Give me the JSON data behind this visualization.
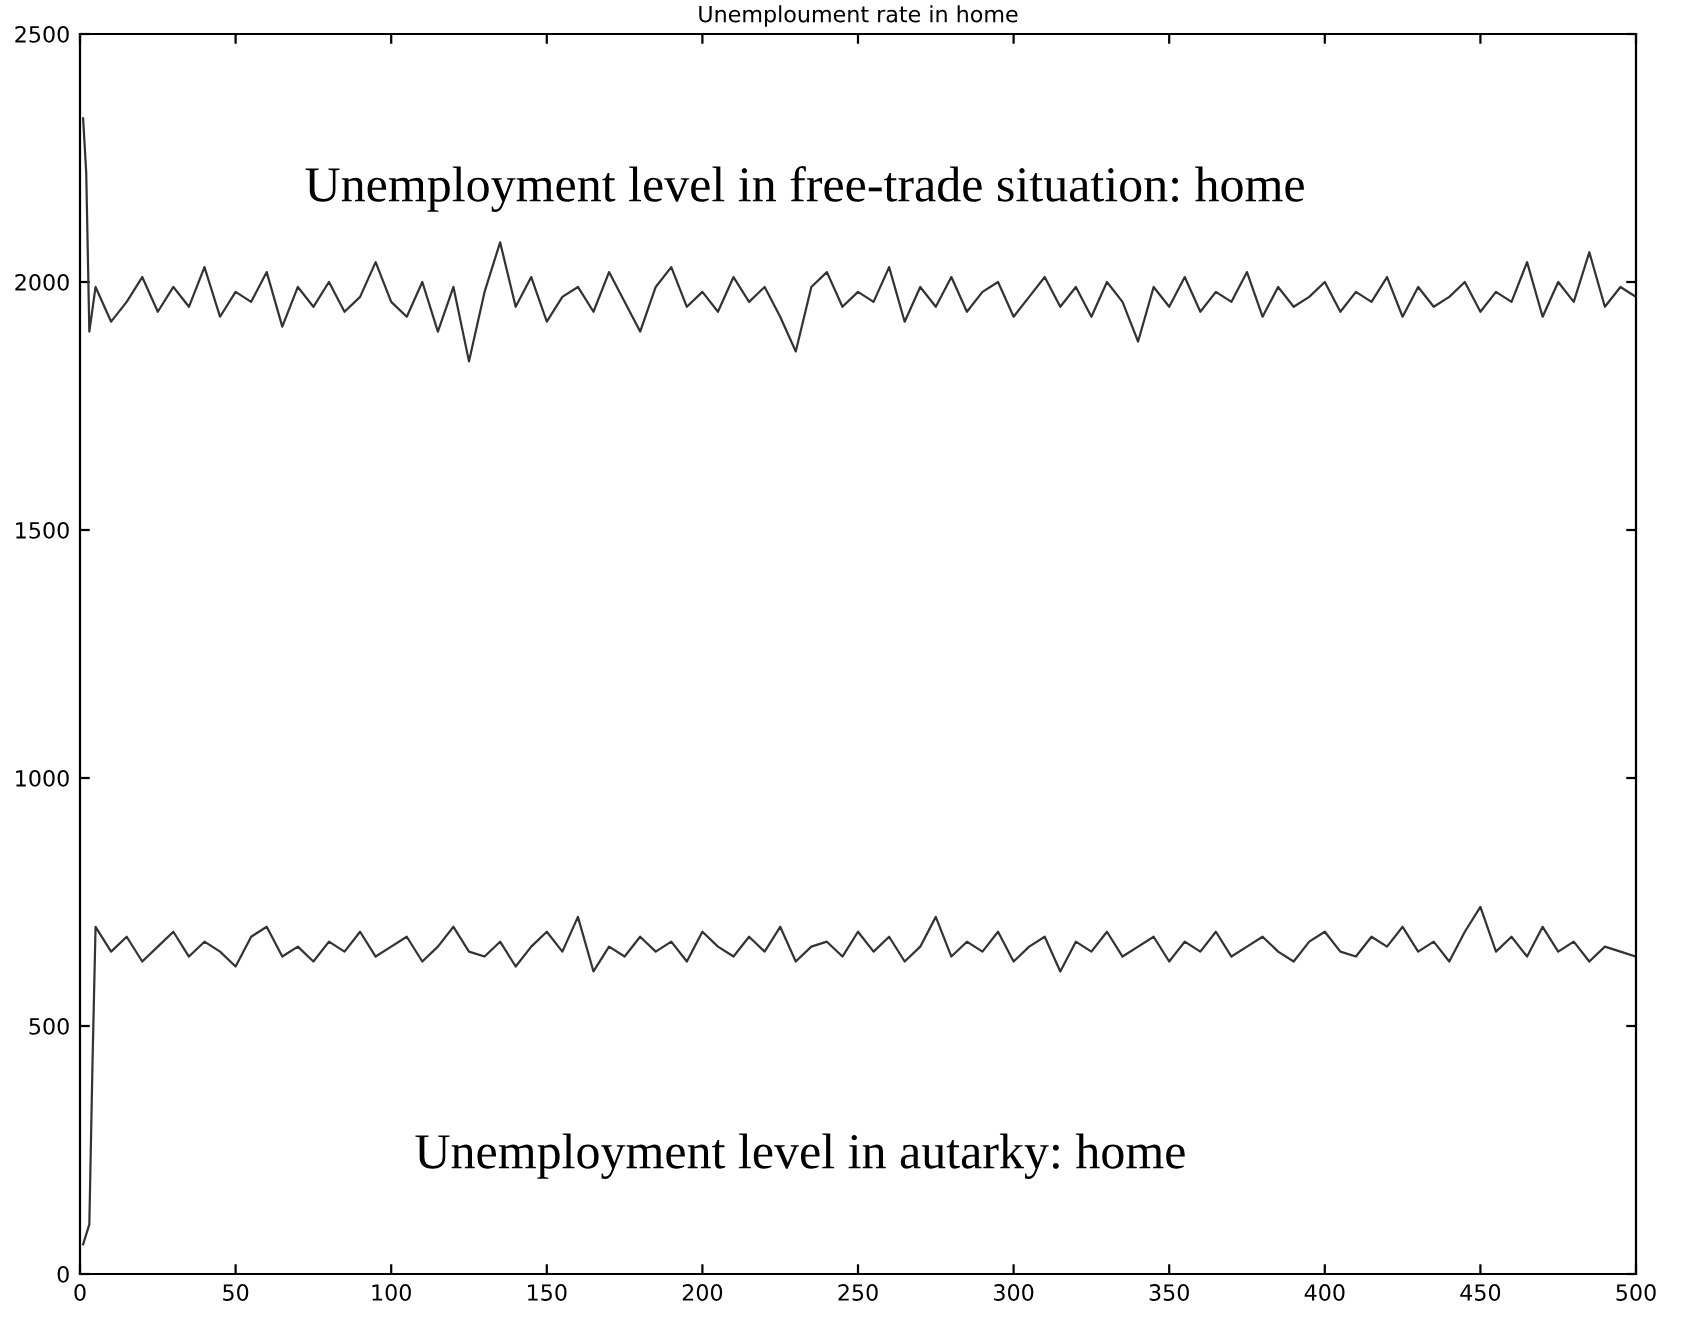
{
  "chart_data": {
    "type": "line",
    "title": "Unemploument rate in home",
    "series": [
      {
        "color": "#333333",
        "x": [
          1,
          2,
          3,
          5,
          10,
          15,
          20,
          25,
          30,
          35,
          40,
          45,
          50,
          55,
          60,
          65,
          70,
          75,
          80,
          85,
          90,
          95,
          100,
          105,
          110,
          115,
          120,
          125,
          130,
          135,
          140,
          145,
          150,
          155,
          160,
          165,
          170,
          175,
          180,
          185,
          190,
          195,
          200,
          205,
          210,
          215,
          220,
          225,
          230,
          235,
          240,
          245,
          250,
          255,
          260,
          265,
          270,
          275,
          280,
          285,
          290,
          295,
          300,
          305,
          310,
          315,
          320,
          325,
          330,
          335,
          340,
          345,
          350,
          355,
          360,
          365,
          370,
          375,
          380,
          385,
          390,
          395,
          400,
          405,
          410,
          415,
          420,
          425,
          430,
          435,
          440,
          445,
          450,
          455,
          460,
          465,
          470,
          475,
          480,
          485,
          490,
          495,
          500
        ],
        "values": [
          2330,
          2220,
          1900,
          1990,
          1920,
          1960,
          2010,
          1940,
          1990,
          1950,
          2030,
          1930,
          1980,
          1960,
          2020,
          1910,
          1990,
          1950,
          2000,
          1940,
          1970,
          2040,
          1960,
          1930,
          2000,
          1900,
          1990,
          1840,
          1980,
          2080,
          1950,
          2010,
          1920,
          1970,
          1990,
          1940,
          2020,
          1960,
          1900,
          1990,
          2030,
          1950,
          1980,
          1940,
          2010,
          1960,
          1990,
          1930,
          1860,
          1990,
          2020,
          1950,
          1980,
          1960,
          2030,
          1920,
          1990,
          1950,
          2010,
          1940,
          1980,
          2000,
          1930,
          1970,
          2010,
          1950,
          1990,
          1930,
          2000,
          1960,
          1880,
          1990,
          1950,
          2010,
          1940,
          1980,
          1960,
          2020,
          1930,
          1990,
          1950,
          1970,
          2000,
          1940,
          1980,
          1960,
          2010,
          1930,
          1990,
          1950,
          1970,
          2000,
          1940,
          1980,
          1960,
          2040,
          1930,
          2000,
          1960,
          2060,
          1950,
          1990,
          1970
        ]
      },
      {
        "color": "#333333",
        "x": [
          1,
          2,
          3,
          4,
          5,
          10,
          15,
          20,
          25,
          30,
          35,
          40,
          45,
          50,
          55,
          60,
          65,
          70,
          75,
          80,
          85,
          90,
          95,
          100,
          105,
          110,
          115,
          120,
          125,
          130,
          135,
          140,
          145,
          150,
          155,
          160,
          165,
          170,
          175,
          180,
          185,
          190,
          195,
          200,
          205,
          210,
          215,
          220,
          225,
          230,
          235,
          240,
          245,
          250,
          255,
          260,
          265,
          270,
          275,
          280,
          285,
          290,
          295,
          300,
          305,
          310,
          315,
          320,
          325,
          330,
          335,
          340,
          345,
          350,
          355,
          360,
          365,
          370,
          375,
          380,
          385,
          390,
          395,
          400,
          405,
          410,
          415,
          420,
          425,
          430,
          435,
          440,
          445,
          450,
          455,
          460,
          465,
          470,
          475,
          480,
          485,
          490,
          495,
          500
        ],
        "values": [
          60,
          80,
          100,
          420,
          700,
          650,
          680,
          630,
          660,
          690,
          640,
          670,
          650,
          620,
          680,
          700,
          640,
          660,
          630,
          670,
          650,
          690,
          640,
          660,
          680,
          630,
          660,
          700,
          650,
          640,
          670,
          620,
          660,
          690,
          650,
          720,
          610,
          660,
          640,
          680,
          650,
          670,
          630,
          690,
          660,
          640,
          680,
          650,
          700,
          630,
          660,
          670,
          640,
          690,
          650,
          680,
          630,
          660,
          720,
          640,
          670,
          650,
          690,
          630,
          660,
          680,
          610,
          670,
          650,
          690,
          640,
          660,
          680,
          630,
          670,
          650,
          690,
          640,
          660,
          680,
          650,
          630,
          670,
          690,
          650,
          640,
          680,
          660,
          700,
          650,
          670,
          630,
          690,
          740,
          650,
          680,
          640,
          700,
          650,
          670,
          630,
          660,
          650,
          640
        ]
      }
    ],
    "annotations": [
      "Unemployment level in free-trade situation: home",
      "Unemployment level in autarky: home"
    ],
    "xlim": [
      0,
      500
    ],
    "xticks": [
      0,
      50,
      100,
      150,
      200,
      250,
      300,
      350,
      400,
      450,
      500
    ],
    "ylim": [
      0,
      2500
    ],
    "yticks": [
      0,
      500,
      1000,
      1500,
      2000,
      2500
    ],
    "grid": false,
    "legend": false,
    "marker": "none",
    "line_style": "solid"
  }
}
